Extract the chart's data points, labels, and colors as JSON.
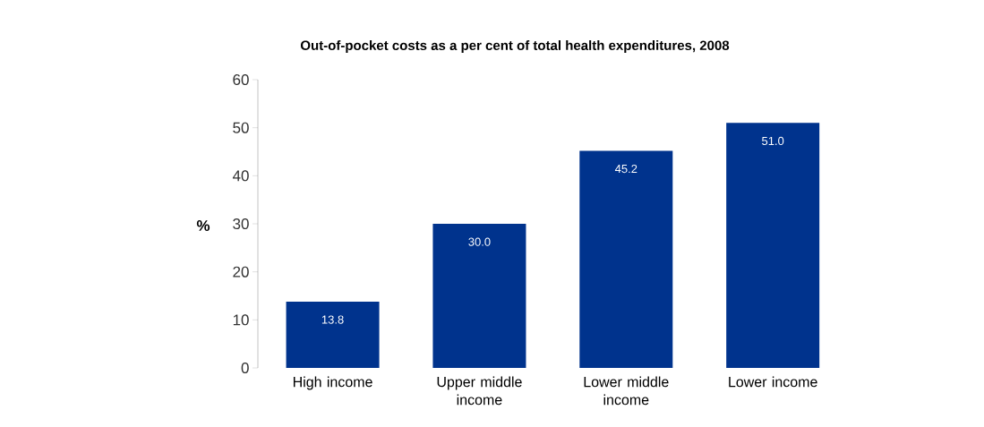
{
  "chart_data": {
    "type": "bar",
    "title": "Out-of-pocket costs as a per cent of total health expenditures, 2008",
    "ylabel": "%",
    "categories": [
      "High income",
      "Upper middle income",
      "Lower middle income",
      "Lower income"
    ],
    "values": [
      13.8,
      30.0,
      45.2,
      51.0
    ],
    "value_labels": [
      "13.8",
      "30.0",
      "45.2",
      "51.0"
    ],
    "color": "#00338d",
    "ylim": [
      0,
      60
    ],
    "yticks": [
      0,
      10,
      20,
      30,
      40,
      50,
      60
    ],
    "grid": false
  }
}
